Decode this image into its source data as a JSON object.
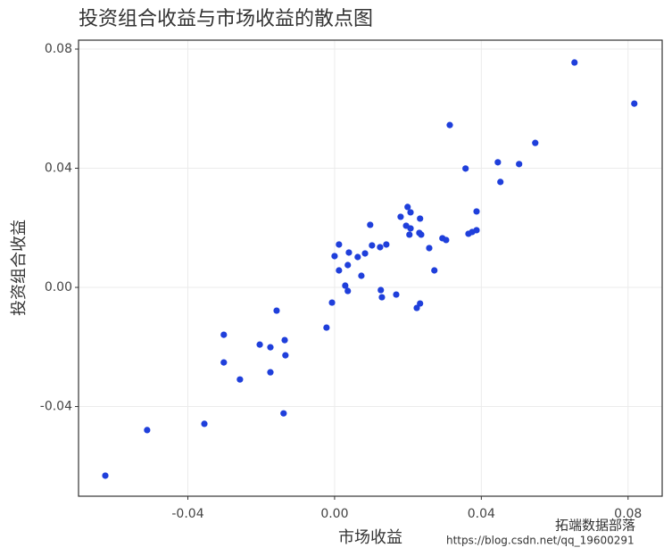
{
  "chart_data": {
    "type": "scatter",
    "title": "投资组合收益与市场收益的散点图",
    "xlabel": "市场收益",
    "ylabel": "投资组合收益",
    "x": [
      -0.0625,
      -0.0511,
      -0.0355,
      -0.0302,
      -0.0302,
      -0.0258,
      -0.0204,
      -0.0175,
      -0.0175,
      -0.0158,
      -0.0136,
      -0.0134,
      -0.0139,
      -0.0022,
      -0.0007,
      0.0,
      0.0012,
      0.0012,
      0.0029,
      0.0036,
      0.0039,
      0.0036,
      0.0063,
      0.0073,
      0.0083,
      0.0097,
      0.0102,
      0.0124,
      0.0141,
      0.0126,
      0.0129,
      0.0168,
      0.018,
      0.0195,
      0.0199,
      0.0207,
      0.0204,
      0.0207,
      0.0231,
      0.0233,
      0.0236,
      0.0224,
      0.0233,
      0.0258,
      0.0272,
      0.0294,
      0.0304,
      0.0314,
      0.0357,
      0.0365,
      0.0375,
      0.0387,
      0.0387,
      0.0445,
      0.0452,
      0.0503,
      0.0547,
      0.0654,
      0.0817
    ],
    "values": [
      -0.0632,
      -0.0479,
      -0.0458,
      -0.0159,
      -0.0252,
      -0.0309,
      -0.0192,
      -0.0201,
      -0.0285,
      -0.0078,
      -0.0177,
      -0.0228,
      -0.0423,
      -0.0135,
      -0.0051,
      0.0105,
      0.0144,
      0.0057,
      0.0006,
      -0.0012,
      0.0117,
      0.0075,
      0.0102,
      0.0039,
      0.0114,
      0.021,
      0.0141,
      0.0135,
      0.0144,
      -0.0009,
      -0.0033,
      -0.0024,
      0.0237,
      0.0207,
      0.027,
      0.0252,
      0.0177,
      0.0198,
      0.0183,
      0.0231,
      0.0177,
      -0.0069,
      -0.0054,
      0.0132,
      0.0057,
      0.0165,
      0.0159,
      0.0545,
      0.0399,
      0.018,
      0.0186,
      0.0192,
      0.0255,
      0.042,
      0.0354,
      0.0414,
      0.0485,
      0.0755,
      0.0617
    ],
    "color": "#1f3fdb",
    "xlim": [
      -0.0698,
      0.0893
    ],
    "ylim": [
      -0.0701,
      0.083
    ],
    "xticks": [
      -0.04,
      {
        "value": 0,
        "label": "0.00"
      },
      0.04,
      0.08
    ],
    "yticks": [
      -0.04,
      {
        "value": 0,
        "label": "0.00"
      },
      0.04,
      0.08
    ],
    "grid": true,
    "annotations": [
      "拓端数据部落",
      "https://blog.csdn.net/qq_19600291"
    ]
  }
}
